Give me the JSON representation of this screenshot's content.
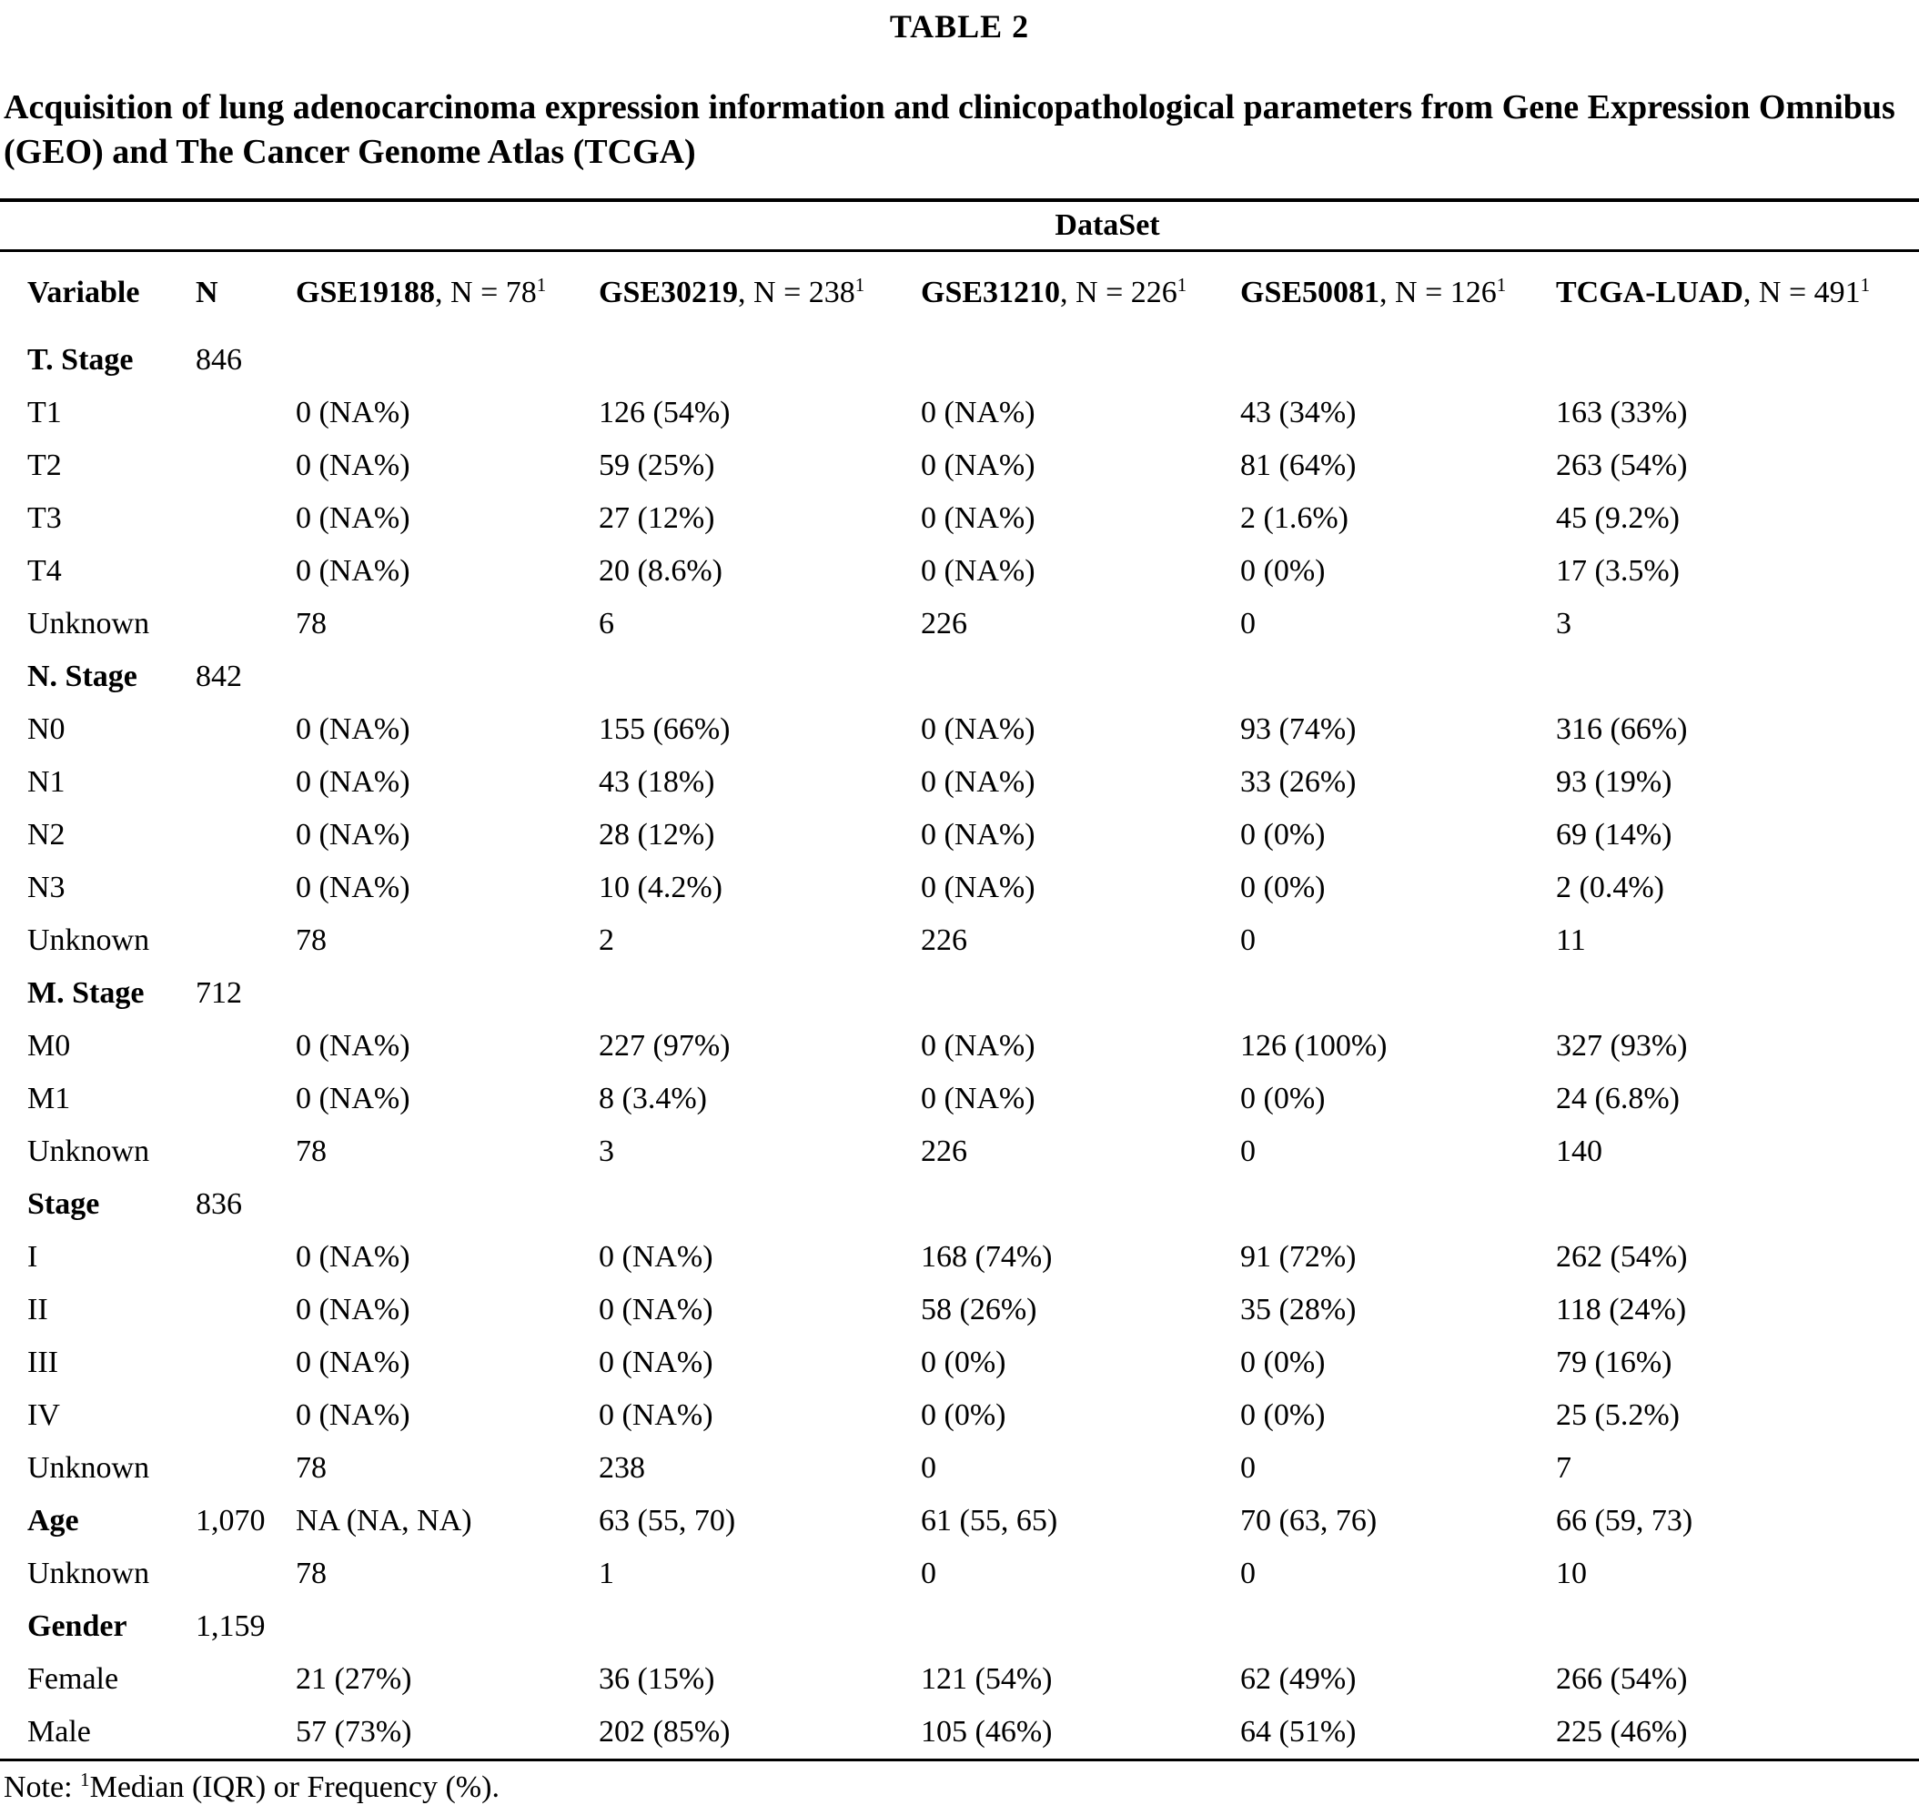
{
  "page": {
    "title": "TABLE 2",
    "caption": "Acquisition of lung adenocarcinoma expression information and clinicopathological parameters from Gene Expression Omnibus (GEO) and The Cancer Genome Atlas (TCGA)",
    "background_color": "#ffffff",
    "text_color": "#000000"
  },
  "table": {
    "spanner": "DataSet",
    "header": {
      "variable": "Variable",
      "n": "N",
      "datasets": [
        {
          "name": "GSE19188",
          "rest": ", N = 78",
          "sup": "1"
        },
        {
          "name": "GSE30219",
          "rest": ", N = 238",
          "sup": "1"
        },
        {
          "name": "GSE31210",
          "rest": ", N = 226",
          "sup": "1"
        },
        {
          "name": "GSE50081",
          "rest": ", N = 126",
          "sup": "1"
        },
        {
          "name": "TCGA-LUAD",
          "rest": ", N = 491",
          "sup": "1"
        }
      ]
    },
    "rows": [
      {
        "label": "T. Stage",
        "bold": true,
        "n": "846",
        "values": [
          "",
          "",
          "",
          "",
          ""
        ]
      },
      {
        "label": "T1",
        "bold": false,
        "n": "",
        "values": [
          "0 (NA%)",
          "126 (54%)",
          "0 (NA%)",
          "43 (34%)",
          "163 (33%)"
        ]
      },
      {
        "label": "T2",
        "bold": false,
        "n": "",
        "values": [
          "0 (NA%)",
          "59 (25%)",
          "0 (NA%)",
          "81 (64%)",
          "263 (54%)"
        ]
      },
      {
        "label": "T3",
        "bold": false,
        "n": "",
        "values": [
          "0 (NA%)",
          "27 (12%)",
          "0 (NA%)",
          "2 (1.6%)",
          "45 (9.2%)"
        ]
      },
      {
        "label": "T4",
        "bold": false,
        "n": "",
        "values": [
          "0 (NA%)",
          "20 (8.6%)",
          "0 (NA%)",
          "0 (0%)",
          "17 (3.5%)"
        ]
      },
      {
        "label": "Unknown",
        "bold": false,
        "n": "",
        "values": [
          "78",
          "6",
          "226",
          "0",
          "3"
        ]
      },
      {
        "label": "N. Stage",
        "bold": true,
        "n": "842",
        "values": [
          "",
          "",
          "",
          "",
          ""
        ]
      },
      {
        "label": "N0",
        "bold": false,
        "n": "",
        "values": [
          "0 (NA%)",
          "155 (66%)",
          "0 (NA%)",
          "93 (74%)",
          "316 (66%)"
        ]
      },
      {
        "label": "N1",
        "bold": false,
        "n": "",
        "values": [
          "0 (NA%)",
          "43 (18%)",
          "0 (NA%)",
          "33 (26%)",
          "93 (19%)"
        ]
      },
      {
        "label": "N2",
        "bold": false,
        "n": "",
        "values": [
          "0 (NA%)",
          "28 (12%)",
          "0 (NA%)",
          "0 (0%)",
          "69 (14%)"
        ]
      },
      {
        "label": "N3",
        "bold": false,
        "n": "",
        "values": [
          "0 (NA%)",
          "10 (4.2%)",
          "0 (NA%)",
          "0 (0%)",
          "2 (0.4%)"
        ]
      },
      {
        "label": "Unknown",
        "bold": false,
        "n": "",
        "values": [
          "78",
          "2",
          "226",
          "0",
          "11"
        ]
      },
      {
        "label": "M. Stage",
        "bold": true,
        "n": "712",
        "values": [
          "",
          "",
          "",
          "",
          ""
        ]
      },
      {
        "label": "M0",
        "bold": false,
        "n": "",
        "values": [
          "0 (NA%)",
          "227 (97%)",
          "0 (NA%)",
          "126 (100%)",
          "327 (93%)"
        ]
      },
      {
        "label": "M1",
        "bold": false,
        "n": "",
        "values": [
          "0 (NA%)",
          "8 (3.4%)",
          "0 (NA%)",
          "0 (0%)",
          "24 (6.8%)"
        ]
      },
      {
        "label": "Unknown",
        "bold": false,
        "n": "",
        "values": [
          "78",
          "3",
          "226",
          "0",
          "140"
        ]
      },
      {
        "label": "Stage",
        "bold": true,
        "n": "836",
        "values": [
          "",
          "",
          "",
          "",
          ""
        ]
      },
      {
        "label": "I",
        "bold": false,
        "n": "",
        "values": [
          "0 (NA%)",
          "0 (NA%)",
          "168 (74%)",
          "91 (72%)",
          "262 (54%)"
        ]
      },
      {
        "label": "II",
        "bold": false,
        "n": "",
        "values": [
          "0 (NA%)",
          "0 (NA%)",
          "58 (26%)",
          "35 (28%)",
          "118 (24%)"
        ]
      },
      {
        "label": "III",
        "bold": false,
        "n": "",
        "values": [
          "0 (NA%)",
          "0 (NA%)",
          "0 (0%)",
          "0 (0%)",
          "79 (16%)"
        ]
      },
      {
        "label": "IV",
        "bold": false,
        "n": "",
        "values": [
          "0 (NA%)",
          "0 (NA%)",
          "0 (0%)",
          "0 (0%)",
          "25 (5.2%)"
        ]
      },
      {
        "label": "Unknown",
        "bold": false,
        "n": "",
        "values": [
          "78",
          "238",
          "0",
          "0",
          "7"
        ]
      },
      {
        "label": "Age",
        "bold": true,
        "n": "1,070",
        "values": [
          "NA (NA, NA)",
          "63 (55, 70)",
          "61 (55, 65)",
          "70 (63, 76)",
          "66 (59, 73)"
        ]
      },
      {
        "label": "Unknown",
        "bold": false,
        "n": "",
        "values": [
          "78",
          "1",
          "0",
          "0",
          "10"
        ]
      },
      {
        "label": "Gender",
        "bold": true,
        "n": "1,159",
        "values": [
          "",
          "",
          "",
          "",
          ""
        ]
      },
      {
        "label": "Female",
        "bold": false,
        "n": "",
        "values": [
          "21 (27%)",
          "36 (15%)",
          "121 (54%)",
          "62 (49%)",
          "266 (54%)"
        ]
      },
      {
        "label": "Male",
        "bold": false,
        "n": "",
        "values": [
          "57 (73%)",
          "202 (85%)",
          "105 (46%)",
          "64 (51%)",
          "225 (46%)"
        ]
      }
    ]
  },
  "footnote": {
    "prefix": "Note: ",
    "sup": "1",
    "text": "Median (IQR) or Frequency (%)."
  }
}
